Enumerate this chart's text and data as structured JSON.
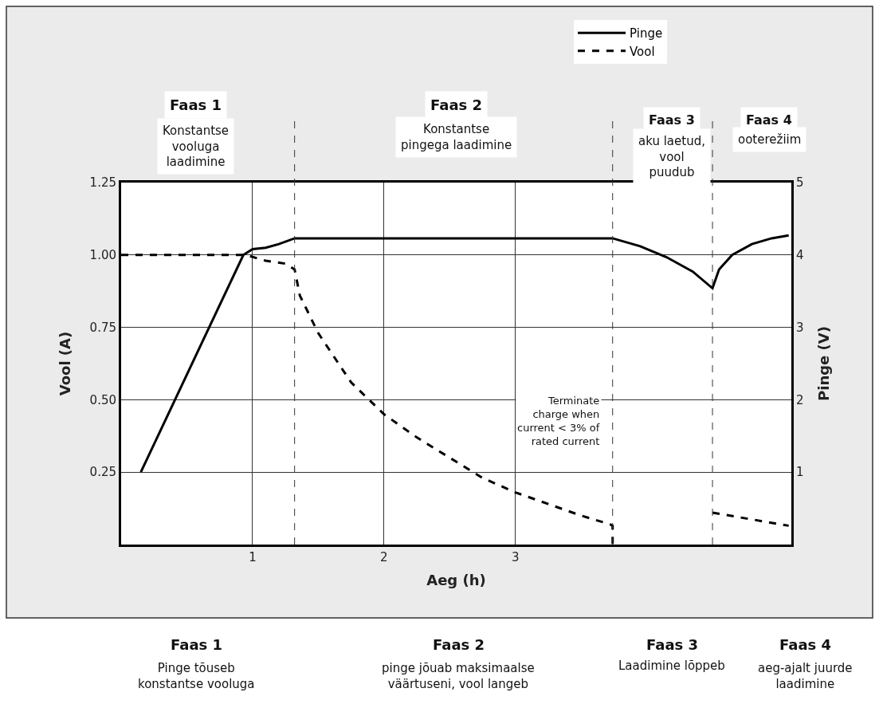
{
  "chart_data": {
    "type": "line",
    "xlabel": "Aeg (h)",
    "ylabel": "Vool (A)",
    "y2label": "Pinge (V)",
    "xlim": [
      0,
      5.1
    ],
    "xticks": [
      1,
      2,
      3
    ],
    "ylim": [
      0,
      1.25
    ],
    "yticks": [
      {
        "value": 0.25,
        "label": "0.25"
      },
      {
        "value": 0.5,
        "label": "0.50"
      },
      {
        "value": 0.75,
        "label": "0.75"
      },
      {
        "value": 1,
        "label": "1.00"
      },
      {
        "value": 1.25,
        "label": "1.25"
      }
    ],
    "y2lim": [
      0,
      5
    ],
    "y2ticks": [
      1,
      2,
      3,
      4,
      5
    ],
    "grid": true,
    "legend": "top right",
    "series": [
      {
        "name": "Pinge",
        "color": "#000000",
        "axis": "y2",
        "line_style": "solid",
        "x": [
          0.15,
          0.93,
          1.0,
          1.1,
          1.2,
          1.32,
          3.74,
          3.95,
          4.15,
          4.35,
          4.5,
          4.55,
          4.65,
          4.8,
          4.95,
          5.08
        ],
        "values": [
          1,
          4,
          4.08,
          4.1,
          4.15,
          4.23,
          4.23,
          4.12,
          3.97,
          3.77,
          3.54,
          3.8,
          4.0,
          4.15,
          4.23,
          4.27
        ]
      },
      {
        "name": "Vool",
        "color": "#000000",
        "line_style": "dashed",
        "x": [
          0,
          0.95,
          1.1,
          1.25,
          1.32,
          1.36,
          1.5,
          1.75,
          2.0,
          2.25,
          2.5,
          2.75,
          3.0,
          3.25,
          3.5,
          3.72,
          3.74,
          3.74,
          null,
          4.5,
          5.08
        ],
        "values": [
          1,
          1,
          0.98,
          0.97,
          0.95,
          0.86,
          0.73,
          0.56,
          0.45,
          0.37,
          0.3,
          0.23,
          0.18,
          0.14,
          0.1,
          0.07,
          0.065,
          0,
          null,
          0.11,
          0.065
        ]
      }
    ],
    "ref_lines": [
      {
        "axis": "x",
        "value": 1.32,
        "line_style": "dashed"
      },
      {
        "axis": "x",
        "value": 3.74,
        "line_style": "dashed"
      },
      {
        "axis": "x",
        "value": 4.5,
        "line_style": "dashed"
      }
    ],
    "annotations": [
      "Faas 1",
      "Konstantse\nvooluga\nlaadimine",
      "Faas 2",
      "Konstantse\npingega laadimine",
      "Faas 3",
      "aku laetud,\nvool\npuudub",
      "Faas 4",
      "ooterežiim",
      "Terminate\ncharge when\ncurrent < 3% of\nrated current",
      "Faas 1",
      "Pinge tõuseb\nkonstantse vooluga",
      "Faas 2",
      "pinge jõuab maksimaalse\nväärtuseni, vool langeb",
      "Faas 3",
      "Laadimine lõppeb",
      "Faas 4",
      "aeg-ajalt juurde\nlaadimine"
    ]
  }
}
